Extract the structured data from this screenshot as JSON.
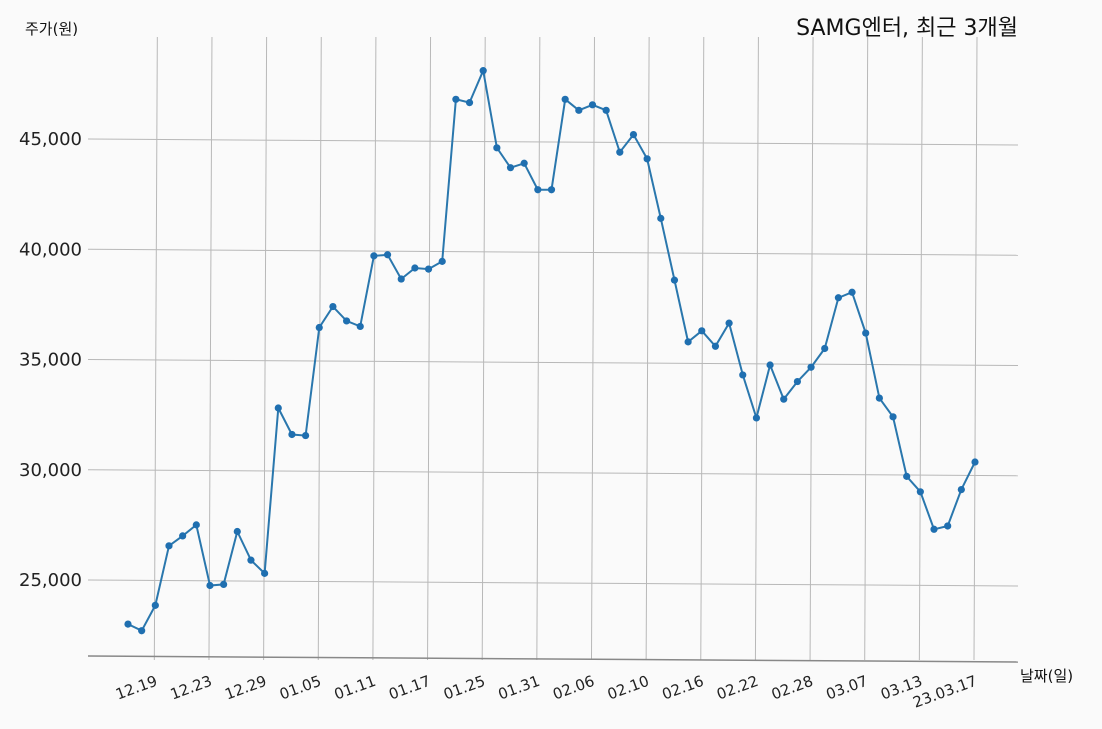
{
  "chart_data": {
    "type": "line",
    "title": "SAMG엔터, 최근 3개월",
    "ylabel": "주가(원)",
    "xlabel": "날짜(일)",
    "ylim": [
      21500,
      48500
    ],
    "yticks": [
      25000,
      30000,
      35000,
      40000,
      45000
    ],
    "ytick_labels": [
      "25,000",
      "30,000",
      "35,000",
      "40,000",
      "45,000"
    ],
    "xtick_labels": [
      "12.19",
      "12.23",
      "12.29",
      "01.05",
      "01.11",
      "01.17",
      "01.25",
      "01.31",
      "02.06",
      "02.10",
      "02.16",
      "02.22",
      "02.28",
      "03.07",
      "03.13",
      "23.03.17"
    ],
    "xtick_index": [
      2,
      6,
      10,
      14,
      18,
      22,
      26,
      30,
      34,
      38,
      42,
      46,
      50,
      54,
      58,
      62
    ],
    "grid": true,
    "series": [
      {
        "color": "#1f6fb0",
        "values": [
          23000,
          22700,
          23850,
          26550,
          27000,
          27500,
          24750,
          24800,
          27200,
          25900,
          25300,
          32800,
          31600,
          31550,
          36450,
          37400,
          36750,
          36500,
          39700,
          39750,
          38650,
          39150,
          39100,
          39450,
          46800,
          46650,
          48100,
          44600,
          43700,
          43900,
          42700,
          42700,
          46800,
          46300,
          46550,
          46300,
          44400,
          45200,
          44100,
          41400,
          38600,
          35800,
          36300,
          35600,
          36650,
          34300,
          32350,
          34750,
          33200,
          34000,
          34650,
          35500,
          37800,
          38050,
          36200,
          33250,
          32400,
          29700,
          29000,
          27300,
          27450,
          29100,
          30350
        ]
      }
    ]
  }
}
